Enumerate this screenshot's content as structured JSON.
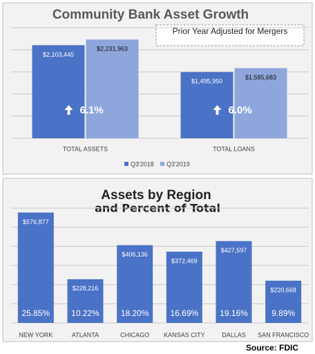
{
  "chart_data": [
    {
      "type": "bar",
      "title": "Community Bank Asset Growth",
      "annotation": "Prior Year Adjusted for Mergers",
      "categories": [
        "TOTAL ASSETS",
        "TOTAL LOANS"
      ],
      "series": [
        {
          "name": "Q3'2018",
          "color": "#4a72c6",
          "values": [
            2103445,
            1495950
          ],
          "value_labels": [
            "$2,103,445",
            "$1,495,950"
          ]
        },
        {
          "name": "Q3'2019",
          "color": "#8ea6dc",
          "values": [
            2231963,
            1585683
          ],
          "value_labels": [
            "$2,231,963",
            "$1,585,683"
          ]
        }
      ],
      "growth_labels": [
        "6.1%",
        "6.0%"
      ],
      "ylim": [
        0,
        2500000
      ],
      "yticks": [
        0,
        500000,
        1000000,
        1500000,
        2000000,
        2500000
      ],
      "grid": true,
      "legend": "bottom"
    },
    {
      "type": "bar",
      "title": "Assets by Region",
      "subtitle": "and Percent of Total",
      "categories": [
        "NEW YORK",
        "ATLANTA",
        "CHICAGO",
        "KANSAS CITY",
        "DALLAS",
        "SAN FRANCISCO"
      ],
      "values": [
        576877,
        228216,
        406136,
        372469,
        427597,
        220668
      ],
      "value_labels": [
        "$576,877",
        "$228,216",
        "$406,136",
        "$372,469",
        "$427,597",
        "$220,668"
      ],
      "shares": [
        25.85,
        10.22,
        18.2,
        16.69,
        19.16,
        9.89
      ],
      "share_labels": [
        "25.85%",
        "10.22%",
        "18.20%",
        "16.69%",
        "19.16%",
        "9.89%"
      ],
      "color": "#4a72c6",
      "ylim": [
        0,
        600000
      ],
      "yticks": [
        0,
        100000,
        200000,
        300000,
        400000,
        500000,
        600000
      ],
      "grid": true,
      "source": "Source: FDIC"
    }
  ]
}
